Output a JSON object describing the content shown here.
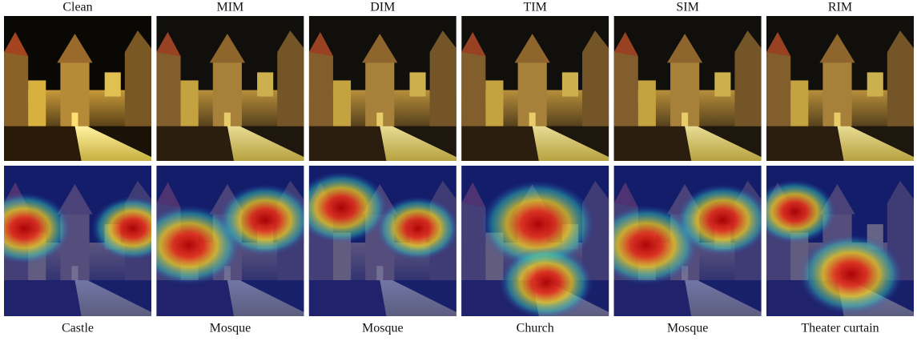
{
  "columns": [
    {
      "title": "Clean",
      "prediction": "Castle"
    },
    {
      "title": "MIM",
      "prediction": "Mosque"
    },
    {
      "title": "DIM",
      "prediction": "Mosque"
    },
    {
      "title": "TIM",
      "prediction": "Church"
    },
    {
      "title": "SIM",
      "prediction": "Mosque"
    },
    {
      "title": "RIM",
      "prediction": "Theater curtain"
    }
  ]
}
